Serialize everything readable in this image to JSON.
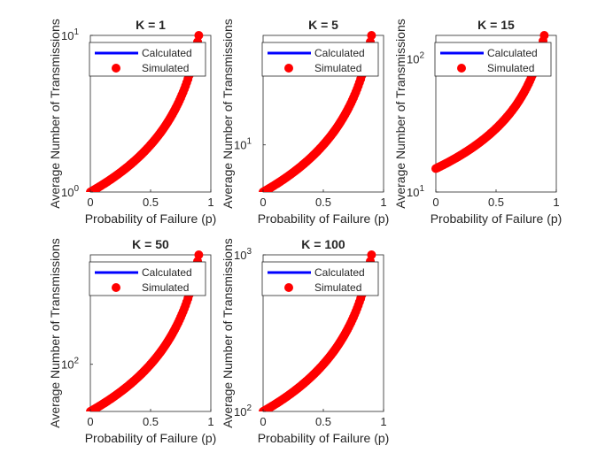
{
  "figure": {
    "background": "#ffffff"
  },
  "chart_data": [
    {
      "type": "scatter",
      "title": "K = 1",
      "xlabel": "Probability of Failure (p)",
      "ylabel": "Average Number of Transmissions",
      "xlim": [
        0,
        1
      ],
      "ylim": [
        1,
        10
      ],
      "yscale": "log",
      "xticks": [
        "0",
        "0.5",
        "1"
      ],
      "yticks": [
        {
          "value": 1,
          "base": "10",
          "exp": "0"
        },
        {
          "value": 10,
          "base": "10",
          "exp": "1"
        }
      ],
      "legend": {
        "placement": "top",
        "entries": [
          "Calculated",
          "Simulated"
        ]
      },
      "series": [
        {
          "name": "Calculated",
          "kind": "line",
          "color": "#0000ff",
          "K": 1
        },
        {
          "name": "Simulated",
          "kind": "marker",
          "color": "#ff0000",
          "K": 1
        }
      ]
    },
    {
      "type": "scatter",
      "title": "K = 5",
      "xlabel": "Probability of Failure (p)",
      "ylabel": "Average Number of Transmissions",
      "xlim": [
        0,
        1
      ],
      "ylim": [
        5,
        50
      ],
      "yscale": "log",
      "xticks": [
        "0",
        "0.5",
        "1"
      ],
      "yticks": [
        {
          "value": 10,
          "base": "10",
          "exp": "1"
        }
      ],
      "legend": {
        "placement": "top",
        "entries": [
          "Calculated",
          "Simulated"
        ]
      },
      "series": [
        {
          "name": "Calculated",
          "kind": "line",
          "color": "#0000ff",
          "K": 5
        },
        {
          "name": "Simulated",
          "kind": "marker",
          "color": "#ff0000",
          "K": 5
        }
      ]
    },
    {
      "type": "scatter",
      "title": "K = 15",
      "xlabel": "Probability of Failure (p)",
      "ylabel": "Average Number of Transmissions",
      "xlim": [
        0,
        1
      ],
      "ylim": [
        10,
        150
      ],
      "yscale": "log",
      "xticks": [
        "0",
        "0.5",
        "1"
      ],
      "yticks": [
        {
          "value": 10,
          "base": "10",
          "exp": "1"
        },
        {
          "value": 100,
          "base": "10",
          "exp": "2"
        }
      ],
      "legend": {
        "placement": "top",
        "entries": [
          "Calculated",
          "Simulated"
        ]
      },
      "series": [
        {
          "name": "Calculated",
          "kind": "line",
          "color": "#0000ff",
          "K": 15
        },
        {
          "name": "Simulated",
          "kind": "marker",
          "color": "#ff0000",
          "K": 15
        }
      ]
    },
    {
      "type": "scatter",
      "title": "K = 50",
      "xlabel": "Probability of Failure (p)",
      "ylabel": "Average Number of Transmissions",
      "xlim": [
        0,
        1
      ],
      "ylim": [
        50,
        500
      ],
      "yscale": "log",
      "xticks": [
        "0",
        "0.5",
        "1"
      ],
      "yticks": [
        {
          "value": 100,
          "base": "10",
          "exp": "2"
        }
      ],
      "legend": {
        "placement": "top",
        "entries": [
          "Calculated",
          "Simulated"
        ]
      },
      "series": [
        {
          "name": "Calculated",
          "kind": "line",
          "color": "#0000ff",
          "K": 50
        },
        {
          "name": "Simulated",
          "kind": "marker",
          "color": "#ff0000",
          "K": 50
        }
      ]
    },
    {
      "type": "scatter",
      "title": "K = 100",
      "xlabel": "Probability of Failure (p)",
      "ylabel": "Average Number of Transmissions",
      "xlim": [
        0,
        1
      ],
      "ylim": [
        100,
        1000
      ],
      "yscale": "log",
      "xticks": [
        "0",
        "0.5",
        "1"
      ],
      "yticks": [
        {
          "value": 100,
          "base": "10",
          "exp": "2"
        },
        {
          "value": 1000,
          "base": "10",
          "exp": "3"
        }
      ],
      "legend": {
        "placement": "top",
        "entries": [
          "Calculated",
          "Simulated"
        ]
      },
      "series": [
        {
          "name": "Calculated",
          "kind": "line",
          "color": "#0000ff",
          "K": 100
        },
        {
          "name": "Simulated",
          "kind": "marker",
          "color": "#ff0000",
          "K": 100
        }
      ]
    }
  ]
}
